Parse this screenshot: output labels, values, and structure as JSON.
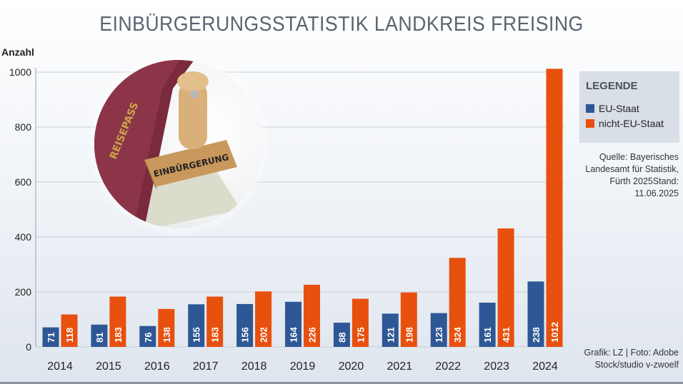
{
  "header": {
    "title": "EINBÜRGERUNGSSTATISTIK LANDKREIS FREISING"
  },
  "legend": {
    "title": "LEGENDE"
  },
  "photo": {
    "stamp_text": "EINBÜRGERUNG",
    "passport_text": "REISEPASS"
  },
  "source": {
    "text": "Quelle: Bayerisches Landesamt für Statistik, Fürth 2025Stand: 11.06.2025"
  },
  "credit": {
    "text": "Grafik: LZ  | Foto: Adobe Stock/studio v-zwoelf"
  },
  "colors": {
    "eu": "#2e5795",
    "non_eu": "#e8500e"
  },
  "chart_data": {
    "type": "bar",
    "title": "EINBÜRGERUNGSSTATISTIK LANDKREIS FREISING",
    "ylabel": "Anzahl",
    "xlabel": "",
    "ylim": [
      0,
      1000
    ],
    "yticks": [
      0,
      200,
      400,
      600,
      800,
      1000
    ],
    "grid": true,
    "legend_position": "right",
    "categories": [
      "2014",
      "2015",
      "2016",
      "2017",
      "2018",
      "2019",
      "2020",
      "2021",
      "2022",
      "2023",
      "2024"
    ],
    "series": [
      {
        "name": "EU-Staat",
        "color": "#2e5795",
        "values": [
          71,
          81,
          76,
          155,
          156,
          164,
          88,
          121,
          123,
          161,
          238
        ]
      },
      {
        "name": "nicht-EU-Staat",
        "color": "#e8500e",
        "values": [
          118,
          183,
          138,
          183,
          202,
          226,
          175,
          198,
          324,
          431,
          1012
        ]
      }
    ]
  }
}
